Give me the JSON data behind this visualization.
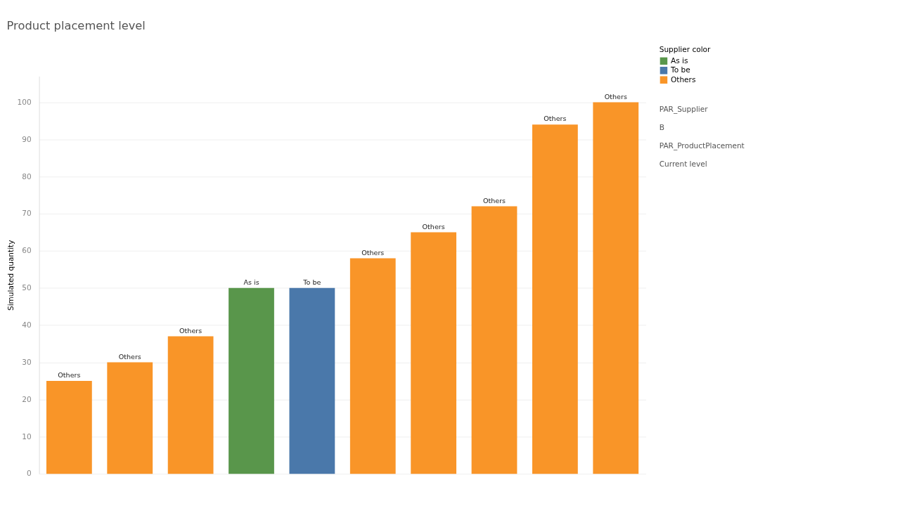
{
  "chart_data": {
    "type": "bar",
    "title": "Product placement level",
    "ylabel": "Simulated quantity",
    "legend_title": "Supplier color",
    "categories": [
      null,
      null,
      null,
      null,
      null,
      null,
      null,
      null,
      null,
      null
    ],
    "series": [
      {
        "name": "As is",
        "color": "#59964b",
        "values": [
          null,
          null,
          null,
          50,
          null,
          null,
          null,
          null,
          null,
          null
        ],
        "value_labels": [
          null,
          null,
          null,
          "As is",
          null,
          null,
          null,
          null,
          null,
          null
        ]
      },
      {
        "name": "To be",
        "color": "#4a78aa",
        "values": [
          null,
          null,
          null,
          null,
          50,
          null,
          null,
          null,
          null,
          null
        ],
        "value_labels": [
          null,
          null,
          null,
          null,
          "To be",
          null,
          null,
          null,
          null,
          null
        ]
      },
      {
        "name": "Others",
        "color": "#f99528",
        "values": [
          25,
          30,
          37,
          null,
          null,
          58,
          65,
          72,
          94,
          100
        ],
        "value_labels": [
          "Others",
          "Others",
          "Others",
          null,
          null,
          "Others",
          "Others",
          "Others",
          "Others",
          "Others"
        ]
      }
    ],
    "ylim": [
      0,
      107
    ],
    "yticks": [
      0,
      10,
      20,
      30,
      40,
      50,
      60,
      70,
      80,
      90,
      100
    ],
    "grid": "y",
    "legend": "top right",
    "tick_labels": "y",
    "annotations": [
      "PAR_Supplier",
      "B",
      "PAR_ProductPlacement",
      "Current level"
    ]
  }
}
